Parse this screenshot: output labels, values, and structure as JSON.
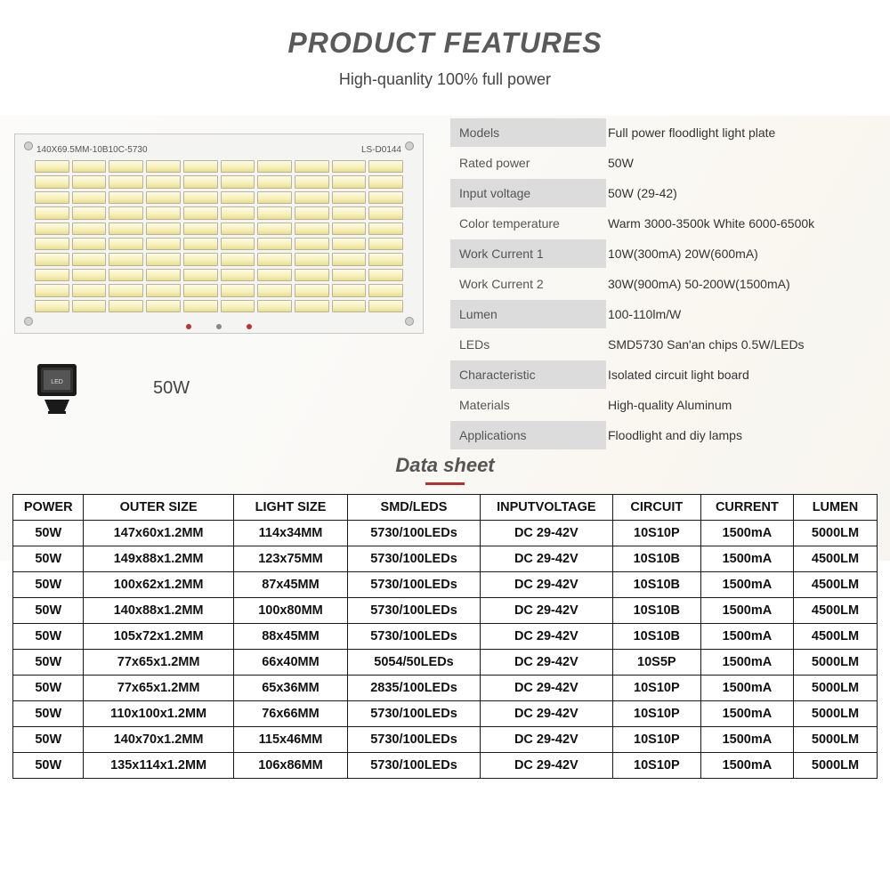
{
  "header": {
    "title": "PRODUCT FEATURES",
    "subtitle": "High-quanlity 100% full power"
  },
  "board": {
    "code_left": "140X69.5MM-10B10C-5730",
    "code_right": "LS-D0144",
    "led_rows": 10,
    "led_cols": 10
  },
  "floodlight": {
    "label": "50W"
  },
  "specs": [
    {
      "k": "Models",
      "v": "Full power floodlight light plate"
    },
    {
      "k": "Rated power",
      "v": "50W"
    },
    {
      "k": "Input voltage",
      "v": "50W (29-42)"
    },
    {
      "k": "Color  temperature",
      "v": "Warm 3000-3500k White 6000-6500k"
    },
    {
      "k": "Work Current 1",
      "v": "10W(300mA) 20W(600mA)"
    },
    {
      "k": "Work Current 2",
      "v": "30W(900mA) 50-200W(1500mA)"
    },
    {
      "k": "Lumen",
      "v": "100-110lm/W"
    },
    {
      "k": "LEDs",
      "v": "SMD5730 San'an chips 0.5W/LEDs"
    },
    {
      "k": "Characteristic",
      "v": "Isolated circuit light board"
    },
    {
      "k": "Materials",
      "v": "High-quality Aluminum"
    },
    {
      "k": "Applications",
      "v": "Floodlight and diy lamps"
    }
  ],
  "datasheet": {
    "title": "Data sheet",
    "underline_color": "#b3332e",
    "columns": [
      "POWER",
      "OUTER SIZE",
      "LIGHT SIZE",
      "SMD/LEDS",
      "INPUTVOLTAGE",
      "CIRCUIT",
      "CURRENT",
      "LUMEN"
    ],
    "col_classes": [
      "c-power",
      "c-outer",
      "c-light",
      "c-smd",
      "c-iv",
      "c-circ",
      "c-cur",
      "c-lum"
    ],
    "rows": [
      [
        "50W",
        "147x60x1.2MM",
        "114x34MM",
        "5730/100LEDs",
        "DC 29-42V",
        "10S10P",
        "1500mA",
        "5000LM"
      ],
      [
        "50W",
        "149x88x1.2MM",
        "123x75MM",
        "5730/100LEDs",
        "DC 29-42V",
        "10S10B",
        "1500mA",
        "4500LM"
      ],
      [
        "50W",
        "100x62x1.2MM",
        "87x45MM",
        "5730/100LEDs",
        "DC 29-42V",
        "10S10B",
        "1500mA",
        "4500LM"
      ],
      [
        "50W",
        "140x88x1.2MM",
        "100x80MM",
        "5730/100LEDs",
        "DC 29-42V",
        "10S10B",
        "1500mA",
        "4500LM"
      ],
      [
        "50W",
        "105x72x1.2MM",
        "88x45MM",
        "5730/100LEDs",
        "DC 29-42V",
        "10S10B",
        "1500mA",
        "4500LM"
      ],
      [
        "50W",
        "77x65x1.2MM",
        "66x40MM",
        "5054/50LEDs",
        "DC 29-42V",
        "10S5P",
        "1500mA",
        "5000LM"
      ],
      [
        "50W",
        "77x65x1.2MM",
        "65x36MM",
        "2835/100LEDs",
        "DC 29-42V",
        "10S10P",
        "1500mA",
        "5000LM"
      ],
      [
        "50W",
        "110x100x1.2MM",
        "76x66MM",
        "5730/100LEDs",
        "DC 29-42V",
        "10S10P",
        "1500mA",
        "5000LM"
      ],
      [
        "50W",
        "140x70x1.2MM",
        "115x46MM",
        "5730/100LEDs",
        "DC 29-42V",
        "10S10P",
        "1500mA",
        "5000LM"
      ],
      [
        "50W",
        "135x114x1.2MM",
        "106x86MM",
        "5730/100LEDs",
        "DC 29-42V",
        "10S10P",
        "1500mA",
        "5000LM"
      ]
    ]
  },
  "colors": {
    "title": "#5a5a5a",
    "spec_band": "#dcdcdc",
    "table_border": "#1a1a1a",
    "led_fill": "#f6f0b8"
  }
}
